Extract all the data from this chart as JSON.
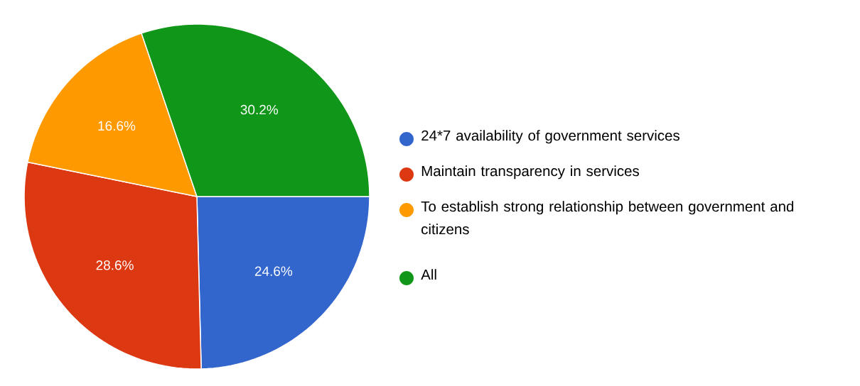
{
  "chart_data": {
    "type": "pie",
    "categories": [
      "24*7 availability of government services",
      "Maintain transparency in services",
      "To establish strong relationship between government and citizens",
      "All"
    ],
    "values": [
      24.6,
      28.6,
      16.6,
      30.2
    ],
    "value_labels": [
      "24.6%",
      "28.6%",
      "16.6%",
      "30.2%"
    ],
    "colors": [
      "#3366cc",
      "#dc3912",
      "#ff9900",
      "#109618"
    ],
    "legend": "right"
  }
}
